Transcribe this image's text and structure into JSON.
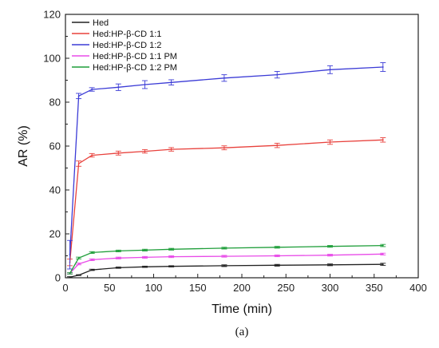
{
  "chart_data": {
    "type": "line",
    "xlabel": "Time (min)",
    "ylabel": "AR (%)",
    "xlim": [
      0,
      400
    ],
    "ylim": [
      0,
      120
    ],
    "xticks": [
      0,
      50,
      100,
      150,
      200,
      250,
      300,
      350,
      400
    ],
    "yticks": [
      0,
      20,
      40,
      60,
      80,
      100,
      120
    ],
    "legend_position": "top-left",
    "grid": false,
    "error_bars": true,
    "caption": "(a)",
    "x": [
      5,
      15,
      30,
      60,
      90,
      120,
      180,
      240,
      300,
      360
    ],
    "series": [
      {
        "name": "Hed",
        "color": "#222222",
        "values": [
          0.3,
          1.2,
          3.6,
          4.6,
          5.0,
          5.2,
          5.5,
          5.7,
          5.9,
          6.1
        ],
        "errors": [
          0.2,
          0.2,
          0.3,
          0.3,
          0.3,
          0.3,
          0.4,
          0.4,
          0.4,
          0.5
        ]
      },
      {
        "name": "Hed:HP-β-CD 1:1",
        "color": "#e8413c",
        "values": [
          7.0,
          52.0,
          55.8,
          56.8,
          57.6,
          58.5,
          59.2,
          60.3,
          61.8,
          62.8
        ],
        "errors": [
          1.5,
          1.2,
          0.8,
          0.9,
          0.8,
          0.8,
          0.9,
          1.0,
          1.0,
          1.0
        ]
      },
      {
        "name": "Hed:HP-β-CD 1:2",
        "color": "#3b3bd6",
        "values": [
          10.5,
          82.8,
          85.8,
          86.8,
          88.0,
          89.0,
          91.0,
          92.5,
          94.8,
          96.0
        ],
        "errors": [
          6.5,
          1.2,
          0.8,
          1.5,
          1.8,
          1.2,
          1.5,
          1.5,
          1.8,
          2.0
        ]
      },
      {
        "name": "Hed:HP-β-CD 1:1 PM",
        "color": "#e84be8",
        "values": [
          2.0,
          6.3,
          8.2,
          9.0,
          9.3,
          9.6,
          9.8,
          10.0,
          10.3,
          10.8
        ],
        "errors": [
          0.3,
          0.4,
          0.4,
          0.4,
          0.4,
          0.4,
          0.4,
          0.4,
          0.4,
          0.4
        ]
      },
      {
        "name": "Hed:HP-β-CD 1:2 PM",
        "color": "#1f9e3a",
        "values": [
          2.0,
          9.0,
          11.5,
          12.2,
          12.6,
          13.0,
          13.5,
          13.9,
          14.3,
          14.7
        ],
        "errors": [
          0.3,
          0.4,
          0.4,
          0.4,
          0.4,
          0.4,
          0.4,
          0.4,
          0.4,
          0.5
        ]
      }
    ]
  }
}
